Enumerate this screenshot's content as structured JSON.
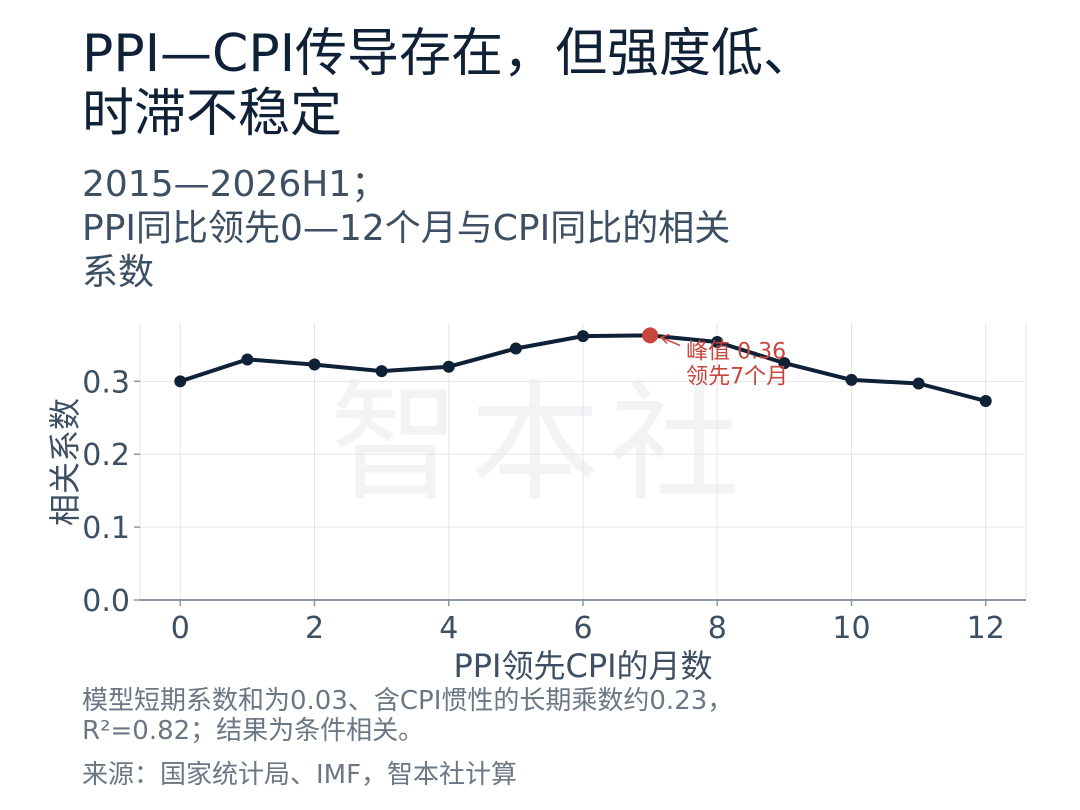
{
  "title_lines": [
    "PPI—CPI传导存在，但强度低、",
    "时滞不稳定"
  ],
  "subtitle_lines": [
    "2015—2026H1；",
    "PPI同比领先0—12个月与CPI同比的相关",
    "系数"
  ],
  "watermark": "智本社",
  "note_lines": [
    "模型短期系数和为0.03、含CPI惯性的长期乘数约0.23，",
    "R²=0.82；结果为条件相关。"
  ],
  "source": "来源：国家统计局、IMF，智本社计算",
  "colors": {
    "line": "#0f2137",
    "peak": "#c9463d",
    "grid": "#e3e6ea",
    "axis": "#8a96a4",
    "text": "#3d4f63",
    "watermark": "#f2f3f5"
  },
  "chart_data": {
    "type": "line",
    "xlabel": "PPI领先CPI的月数",
    "ylabel": "相关系数",
    "xlim": [
      -0.6,
      12.6
    ],
    "ylim": [
      0,
      0.38
    ],
    "x_ticks": [
      0,
      2,
      4,
      6,
      8,
      10,
      12
    ],
    "y_ticks": [
      0.0,
      0.1,
      0.2,
      0.3
    ],
    "grid": true,
    "series": [
      {
        "x": [
          0,
          1,
          2,
          3,
          4,
          5,
          6,
          7,
          8,
          9,
          10,
          11,
          12
        ],
        "y": [
          0.3,
          0.33,
          0.323,
          0.314,
          0.32,
          0.345,
          0.362,
          0.363,
          0.354,
          0.325,
          0.302,
          0.297,
          0.273
        ]
      }
    ],
    "highlight": {
      "x": 7,
      "y": 0.363,
      "label_lines": [
        "峰值 0.36",
        "领先7个月"
      ]
    }
  }
}
